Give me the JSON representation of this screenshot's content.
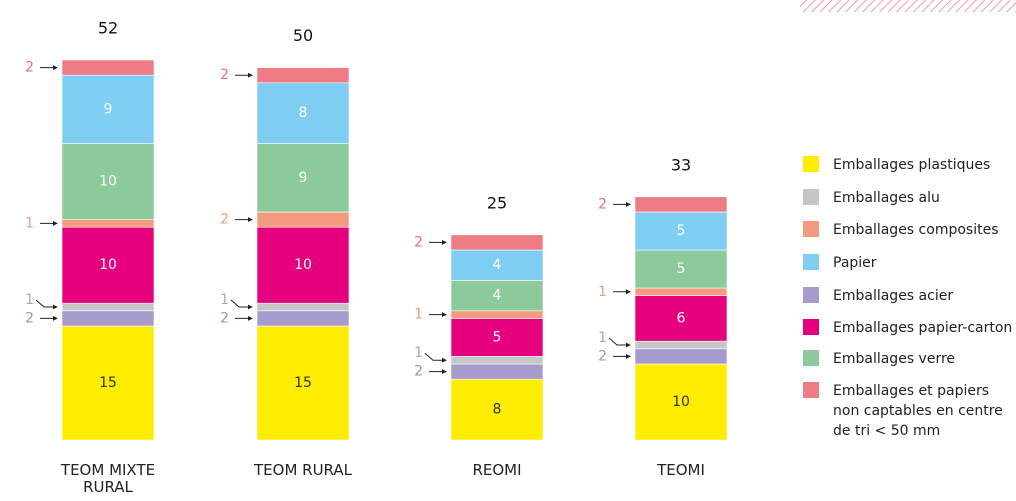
{
  "chart_data": {
    "type": "stacked-bar",
    "categories": [
      "TEOM MIXTE RURAL",
      "TEOM RURAL",
      "REOMI",
      "TEOMI"
    ],
    "totals": [
      52,
      50,
      25,
      33
    ],
    "series": [
      {
        "name": "Emballages plastiques",
        "color": "#ffed00",
        "values": [
          15,
          15,
          8,
          10
        ]
      },
      {
        "name": "Emballages alu",
        "color": "#c6c6c6",
        "values": [
          1,
          1,
          1,
          1
        ]
      },
      {
        "name": "Emballages composites",
        "color": "#f39b7f",
        "values": [
          1,
          2,
          1,
          1
        ]
      },
      {
        "name": "Papier",
        "color": "#7ecef4",
        "values": [
          9,
          8,
          4,
          5
        ]
      },
      {
        "name": "Emballages acier",
        "color": "#a69bcc",
        "values": [
          2,
          2,
          2,
          2
        ]
      },
      {
        "name": "Emballages papier-carton",
        "color": "#e5007e",
        "values": [
          10,
          10,
          5,
          6
        ]
      },
      {
        "name": "Emballages verre",
        "color": "#8cc99b",
        "values": [
          10,
          9,
          4,
          5
        ]
      },
      {
        "name": "Emballages et papiers non captables en centre de tri < 50 mm",
        "color": "#ef7b85",
        "values": [
          2,
          2,
          2,
          2
        ]
      }
    ]
  }
}
